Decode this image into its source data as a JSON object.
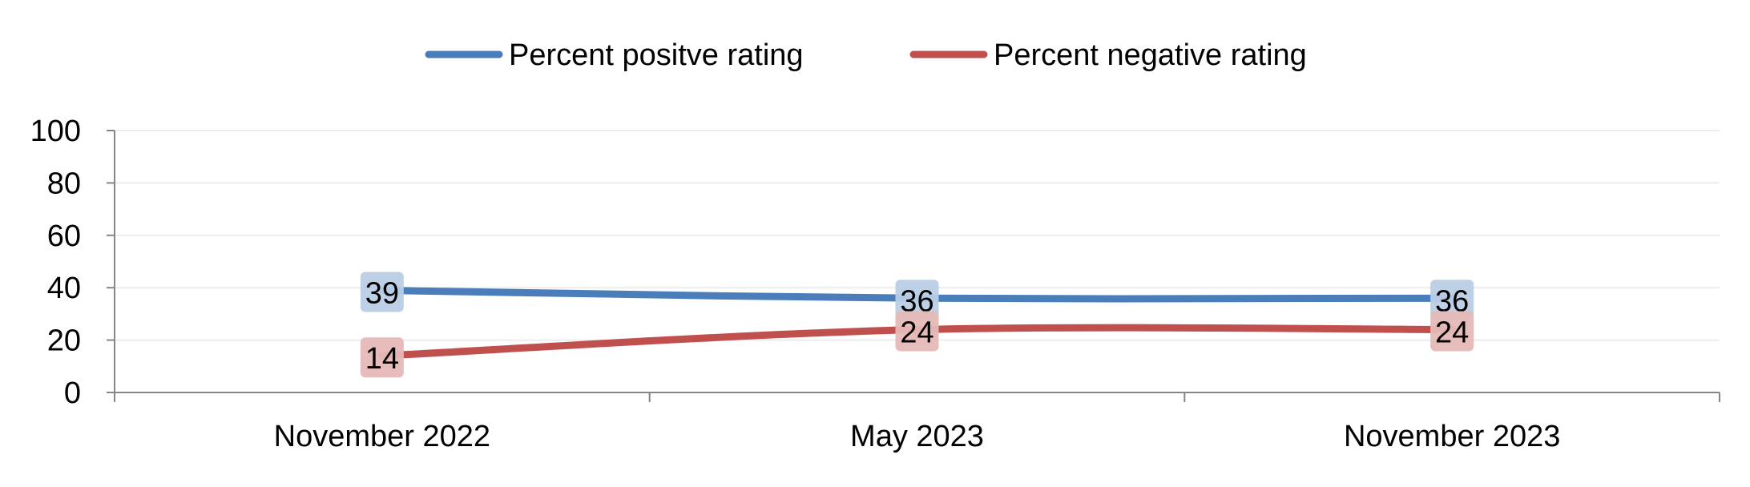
{
  "chart_data": {
    "type": "line",
    "title": "",
    "xlabel": "",
    "ylabel": "",
    "categories": [
      "November 2022",
      "May 2023",
      "November 2023"
    ],
    "ylim": [
      0,
      100
    ],
    "yticks": [
      0,
      20,
      40,
      60,
      80,
      100
    ],
    "grid": true,
    "legend_position": "top",
    "series": [
      {
        "name": "Percent positve rating",
        "values": [
          39,
          36,
          36
        ],
        "color": "#4a7ebb",
        "label_bg": "#b9cde5"
      },
      {
        "name": "Percent negative rating",
        "values": [
          14,
          24,
          24
        ],
        "color": "#c0504d",
        "label_bg": "#e6b9b8"
      }
    ],
    "axis_color": "#868686",
    "grid_color": "#ececec",
    "text_color": "#000000"
  }
}
